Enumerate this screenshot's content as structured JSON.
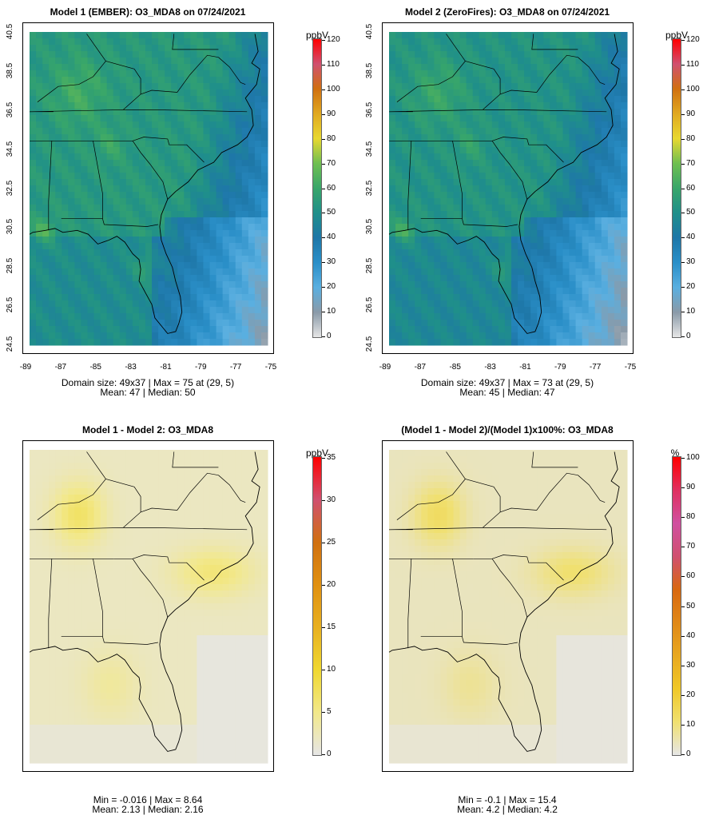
{
  "panels": [
    {
      "title": "Model 1 (EMBER): O3_MDA8 on 07/24/2021",
      "stats_line1": "Domain size: 49x37 | Max = 75 at (29, 5)",
      "stats_line2": "Mean: 47 |  Median: 50",
      "colorbar_unit": "ppbV",
      "colorbar_ticks": [
        "120",
        "110",
        "100",
        "90",
        "80",
        "70",
        "60",
        "50",
        "40",
        "30",
        "20",
        "10",
        "0"
      ],
      "y_ticks": [
        "40.5",
        "38.5",
        "36.5",
        "34.5",
        "32.5",
        "30.5",
        "28.5",
        "26.5",
        "24.5"
      ],
      "x_ticks": [
        "-89",
        "-87",
        "-85",
        "-83",
        "-81",
        "-79",
        "-77",
        "-75"
      ],
      "palette": "conc"
    },
    {
      "title": "Model 2 (ZeroFires): O3_MDA8 on 07/24/2021",
      "stats_line1": "Domain size: 49x37 | Max = 73 at (29, 5)",
      "stats_line2": "Mean: 45 |  Median: 47",
      "colorbar_unit": "ppbV",
      "colorbar_ticks": [
        "120",
        "110",
        "100",
        "90",
        "80",
        "70",
        "60",
        "50",
        "40",
        "30",
        "20",
        "10",
        "0"
      ],
      "y_ticks": [
        "40.5",
        "38.5",
        "36.5",
        "34.5",
        "32.5",
        "30.5",
        "28.5",
        "26.5",
        "24.5"
      ],
      "x_ticks": [
        "-89",
        "-87",
        "-85",
        "-83",
        "-81",
        "-79",
        "-77",
        "-75"
      ],
      "palette": "conc"
    },
    {
      "title": "Model 1 - Model 2: O3_MDA8",
      "stats_line1": "Min = -0.016 | Max = 8.64",
      "stats_line2": "Mean: 2.13 |  Median: 2.16",
      "colorbar_unit": "ppbV",
      "colorbar_ticks": [
        "35",
        "30",
        "25",
        "20",
        "15",
        "10",
        "5",
        "0"
      ],
      "palette": "diff"
    },
    {
      "title": "(Model 1 - Model 2)/(Model 1)x100%: O3_MDA8",
      "stats_line1": "Min = -0.1 | Max = 15.4",
      "stats_line2": "Mean: 4.2 |  Median: 4.2",
      "colorbar_unit": "%",
      "colorbar_ticks": [
        "100",
        "90",
        "80",
        "70",
        "60",
        "50",
        "40",
        "30",
        "20",
        "10",
        "0"
      ],
      "palette": "pct"
    }
  ],
  "colors": {
    "conc_gradient": [
      "#e6e6e6",
      "#8a9aa8",
      "#5aafe0",
      "#2a8fc8",
      "#1e77a8",
      "#1f8f8a",
      "#38a66a",
      "#6fbf50",
      "#e8d830",
      "#e0a820",
      "#d07010",
      "#d05070",
      "#ff0000"
    ],
    "diff_gradient": [
      "#e6e6e6",
      "#f2e88a",
      "#f0d830",
      "#e8b020",
      "#e09010",
      "#d07010",
      "#d05070",
      "#ff0000"
    ],
    "pct_gradient": [
      "#e6e6e6",
      "#f0e070",
      "#f0c828",
      "#e8a820",
      "#e08818",
      "#d86810",
      "#d05070",
      "#d050a0",
      "#e03060",
      "#ff0000"
    ],
    "coast_line": "#000000",
    "background_sea_conc": "#1f77a8"
  }
}
